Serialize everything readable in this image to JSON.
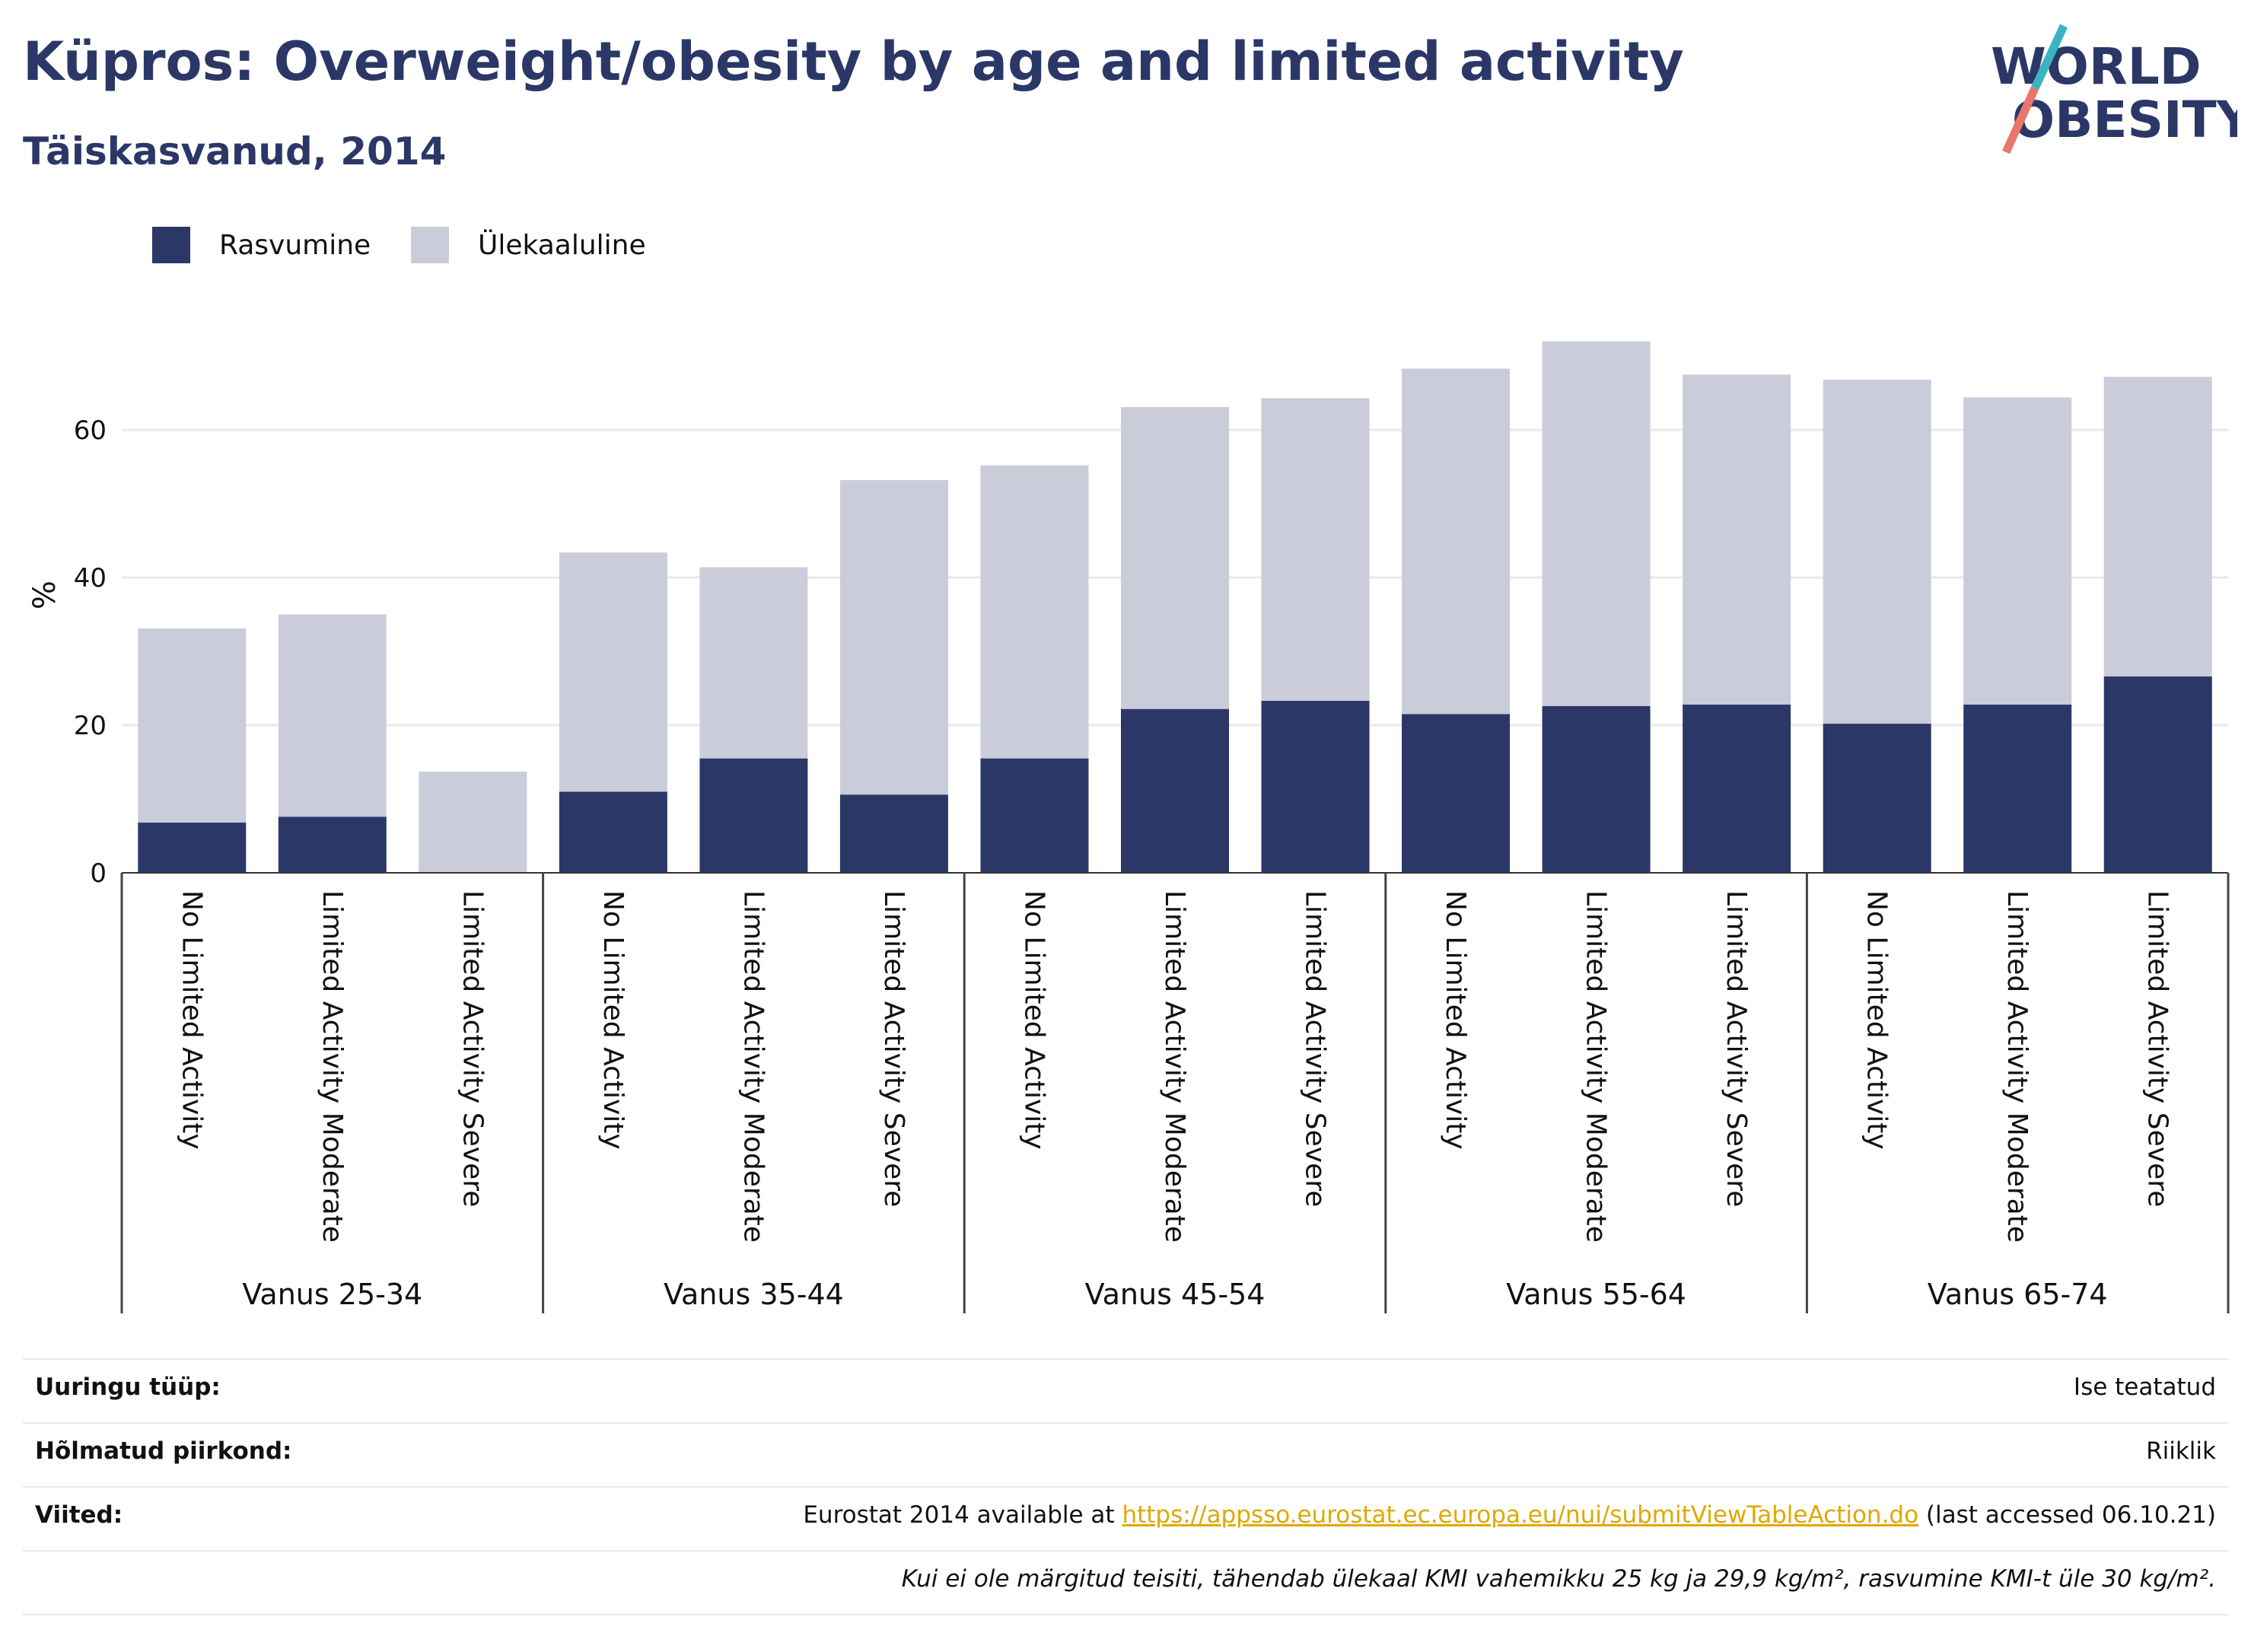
{
  "header": {
    "title": "Küpros: Overweight/obesity by age and limited activity",
    "subtitle": "Täiskasvanud, 2014"
  },
  "logo": {
    "line1": "WORLD",
    "line2": "OBESITY"
  },
  "legend": [
    {
      "label": "Rasvumine",
      "color": "#2b3767"
    },
    {
      "label": "Ülekaaluline",
      "color": "#cbccd9"
    }
  ],
  "chart_data": {
    "type": "bar",
    "stacked": true,
    "ylabel": "%",
    "ylim": [
      0,
      75
    ],
    "yticks": [
      0,
      20,
      40,
      60
    ],
    "grid": true,
    "legend_position": "top-left",
    "groups": [
      "Vanus 25-34",
      "Vanus 35-44",
      "Vanus 45-54",
      "Vanus 55-64",
      "Vanus 65-74"
    ],
    "categories": [
      "No Limited Activity",
      "Limited Activity Moderate",
      "Limited Activity Severe",
      "No Limited Activity",
      "Limited Activity Moderate",
      "Limited Activity Severe",
      "No Limited Activity",
      "Limited Activity Moderate",
      "Limited Activity Severe",
      "No Limited Activity",
      "Limited Activity Moderate",
      "Limited Activity Severe",
      "No Limited Activity",
      "Limited Activity Moderate",
      "Limited Activity Severe"
    ],
    "series": [
      {
        "name": "Rasvumine",
        "color": "#2b3767",
        "values": [
          6.8,
          7.6,
          0,
          11.0,
          15.5,
          10.6,
          15.5,
          22.2,
          23.3,
          21.5,
          22.6,
          22.8,
          20.2,
          22.8,
          26.6
        ]
      },
      {
        "name": "Ülekaaluline",
        "color": "#cbccd9",
        "values": [
          26.3,
          27.4,
          13.7,
          32.4,
          25.9,
          42.6,
          39.7,
          40.9,
          41.0,
          46.8,
          49.4,
          44.7,
          46.6,
          41.6,
          40.6
        ]
      }
    ]
  },
  "info": [
    {
      "label": "Uuringu tüüp:",
      "value": "Ise teatatud"
    },
    {
      "label": "Hõlmatud piirkond:",
      "value": "Riiklik"
    },
    {
      "label": "Viited:",
      "value_prefix": "Eurostat 2014 available at ",
      "link": "https://appsso.eurostat.ec.europa.eu/nui/submitViewTableAction.do",
      "value_suffix": " (last accessed 06.10.21)"
    },
    {
      "label": "",
      "value": "Kui ei ole märgitud teisiti, tähendab ülekaal KMI vahemikku 25 kg ja 29,9 kg/m², rasvumine KMI-t üle 30 kg/m²."
    }
  ]
}
